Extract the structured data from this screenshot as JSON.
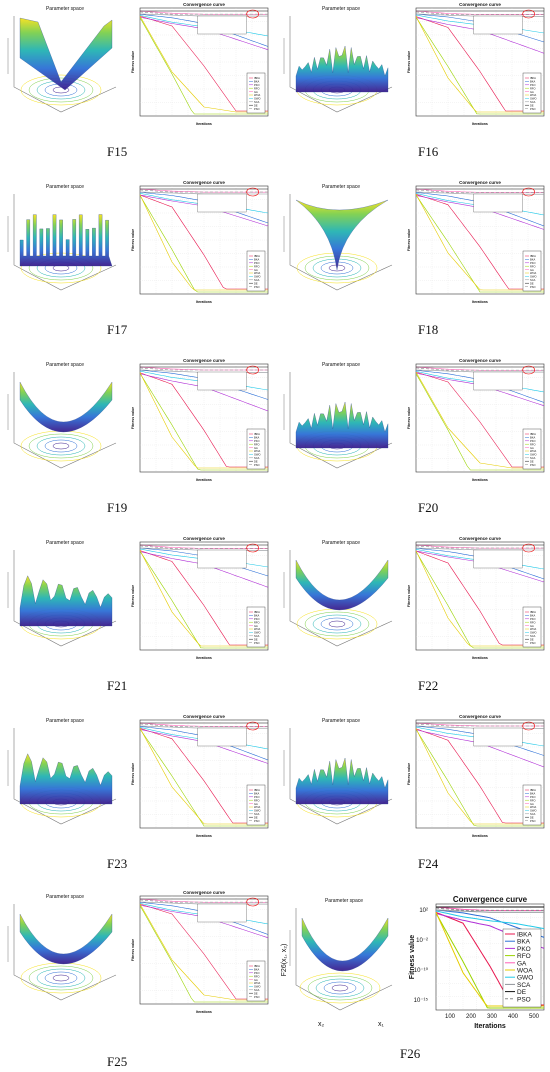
{
  "param_title": "Parameter space",
  "conv_title": "Convergence curve",
  "x_label": "Iterations",
  "y_label": "Fitness value",
  "legend": [
    {
      "name": "IBKA",
      "color": "#e8174f",
      "dash": ""
    },
    {
      "name": "BKA",
      "color": "#2b6fd6",
      "dash": ""
    },
    {
      "name": "PKO",
      "color": "#b02fd6",
      "dash": ""
    },
    {
      "name": "RFO",
      "color": "#9ad400",
      "dash": ""
    },
    {
      "name": "GA",
      "color": "#ff5fb7",
      "dash": ""
    },
    {
      "name": "WOA",
      "color": "#e6cc00",
      "dash": ""
    },
    {
      "name": "GWO",
      "color": "#22c9e8",
      "dash": ""
    },
    {
      "name": "SCA",
      "color": "#8f9399",
      "dash": ""
    },
    {
      "name": "DE",
      "color": "#111111",
      "dash": ""
    },
    {
      "name": "PSO",
      "color": "#8a8a8a",
      "dash": "3,2"
    }
  ],
  "panels": [
    {
      "label": "F15",
      "surface": "valley"
    },
    {
      "label": "F16",
      "surface": "peaks"
    },
    {
      "label": "F17",
      "surface": "columns"
    },
    {
      "label": "F18",
      "surface": "funnel"
    },
    {
      "label": "F19",
      "surface": "bowl"
    },
    {
      "label": "F20",
      "surface": "peaks"
    },
    {
      "label": "F21",
      "surface": "ridges"
    },
    {
      "label": "F22",
      "surface": "bowl"
    },
    {
      "label": "F23",
      "surface": "ridges"
    },
    {
      "label": "F24",
      "surface": "peaks"
    },
    {
      "label": "F25",
      "surface": "bowl"
    },
    {
      "label": "F26",
      "surface": "bowl"
    }
  ],
  "f26": {
    "zlabel": "F26(x₁, x₂)",
    "x1_label": "x₁",
    "x2_label": "x₂",
    "axis_ticks": [
      "5",
      "0",
      "-5",
      "0",
      "5"
    ],
    "xticks": [
      "100",
      "200",
      "300",
      "400",
      "500"
    ],
    "yticks": [
      "10²",
      "10⁻²",
      "10⁻¹⁰",
      "10⁻¹⁵"
    ]
  },
  "chart_data": {
    "type": "line",
    "title": "Convergence curve",
    "xlabel": "Iterations",
    "ylabel": "Fitness value",
    "xlim": [
      0,
      500
    ],
    "ylog": true,
    "series": [
      {
        "name": "IBKA",
        "values": [
          1,
          2,
          0.05,
          1e-06,
          1e-12
        ]
      },
      {
        "name": "BKA",
        "values": [
          3,
          2,
          1.5,
          0.5,
          0.1
        ]
      },
      {
        "name": "PKO",
        "values": [
          2,
          1,
          0.5,
          0.2,
          0.1
        ]
      },
      {
        "name": "RFO",
        "values": [
          1,
          0.01,
          1e-06,
          1e-12,
          1e-15
        ]
      },
      {
        "name": "GA",
        "values": [
          3,
          2,
          2,
          2,
          2
        ]
      },
      {
        "name": "WOA",
        "values": [
          2,
          0.0001,
          1e-10,
          1e-15,
          1e-15
        ]
      },
      {
        "name": "GWO",
        "values": [
          3,
          1,
          0.8,
          0.7,
          0.3
        ]
      },
      {
        "name": "SCA",
        "values": [
          3,
          2.5,
          2,
          2,
          2
        ]
      },
      {
        "name": "DE",
        "values": [
          3,
          3,
          2.8,
          2.8,
          2.8
        ]
      },
      {
        "name": "PSO",
        "values": [
          2.5,
          2.2,
          2.2,
          2.2,
          2.2
        ]
      }
    ]
  }
}
